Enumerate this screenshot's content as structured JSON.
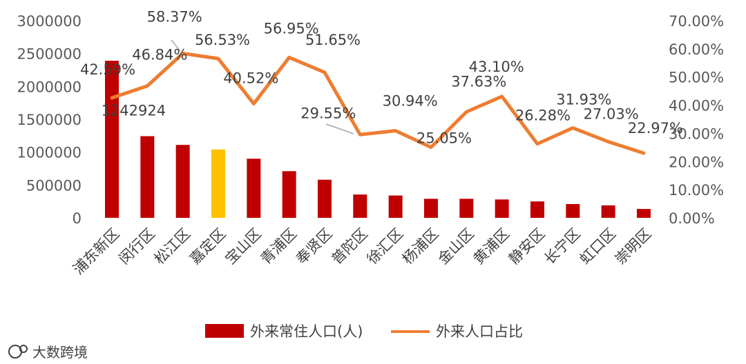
{
  "chart_data": {
    "type": "bar+line",
    "categories": [
      "浦东新区",
      "闵行区",
      "松江区",
      "嘉定区",
      "宝山区",
      "青浦区",
      "奉贤区",
      "普陀区",
      "徐汇区",
      "杨浦区",
      "金山区",
      "黄浦区",
      "静安区",
      "长宁区",
      "虹口区",
      "崇明区"
    ],
    "series": [
      {
        "name": "外来常住人口(人)",
        "type": "bar",
        "axis": "left",
        "color": "#c00000",
        "highlight_color": "#ffc000",
        "highlight_index": 3,
        "values": [
          2390000,
          1242924,
          1110000,
          1040000,
          900000,
          710000,
          580000,
          355000,
          340000,
          290000,
          290000,
          280000,
          250000,
          210000,
          190000,
          135000
        ]
      },
      {
        "name": "外来人口占比",
        "type": "line",
        "axis": "right",
        "color": "#ed7d31",
        "values": [
          42.59,
          46.84,
          58.37,
          56.53,
          40.52,
          56.95,
          51.65,
          29.55,
          30.94,
          25.05,
          37.63,
          43.1,
          26.28,
          31.93,
          27.03,
          22.97
        ]
      }
    ],
    "bar_data_labels": [
      {
        "index": 1,
        "text": "1242924"
      }
    ],
    "line_data_labels": [
      "42.59%",
      "46.84%",
      "58.37%",
      "56.53%",
      "40.52%",
      "56.95%",
      "51.65%",
      "29.55%",
      "30.94%",
      "25.05%",
      "37.63%",
      "43.10%",
      "26.28%",
      "31.93%",
      "27.03%",
      "22.97%"
    ],
    "y_left": {
      "min": 0,
      "max": 3000000,
      "step": 500000,
      "ticks": [
        "0",
        "500000",
        "1000000",
        "1500000",
        "2000000",
        "2500000",
        "3000000"
      ]
    },
    "y_right": {
      "min": 0,
      "max": 70,
      "step": 10,
      "ticks": [
        "0.00%",
        "10.00%",
        "20.00%",
        "30.00%",
        "40.00%",
        "50.00%",
        "60.00%",
        "70.00%"
      ]
    },
    "legend_position": "bottom",
    "grid": false
  },
  "watermark": {
    "brand": "大数跨境"
  }
}
